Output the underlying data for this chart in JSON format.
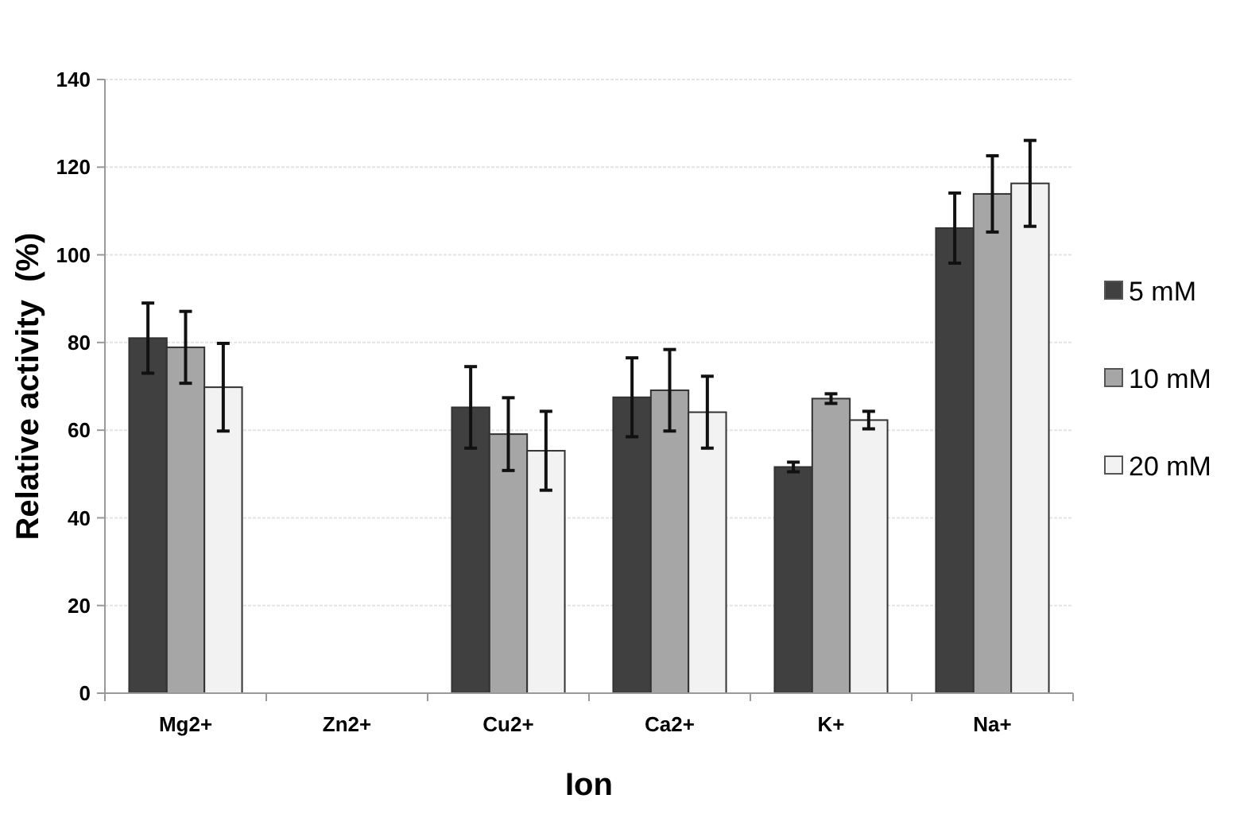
{
  "chart_data": {
    "type": "bar",
    "xlabel": "Ion",
    "ylabel": "Relative activity  (%)",
    "categories": [
      "Mg2+",
      "Zn2+",
      "Cu2+",
      "Ca2+",
      "K+",
      "Na+"
    ],
    "series": [
      {
        "name": "5 mM",
        "color": "#404040",
        "values": [
          81,
          null,
          65.2,
          67.5,
          51.6,
          106.1
        ],
        "errors": [
          8,
          null,
          9.3,
          9,
          1.1,
          8
        ]
      },
      {
        "name": "10 mM",
        "color": "#a6a6a6",
        "values": [
          78.9,
          null,
          59.1,
          69.1,
          67.2,
          113.9
        ],
        "errors": [
          8.2,
          null,
          8.3,
          9.3,
          1.1,
          8.7
        ]
      },
      {
        "name": "20 mM",
        "color": "#f2f2f2",
        "values": [
          69.8,
          null,
          55.3,
          64.1,
          62.3,
          116.3
        ],
        "errors": [
          10,
          null,
          9,
          8.2,
          2,
          9.8
        ]
      }
    ],
    "ylim": [
      0,
      140
    ],
    "yticks": [
      0,
      20,
      40,
      60,
      80,
      100,
      120,
      140
    ],
    "grid": "y",
    "legend": "right"
  }
}
